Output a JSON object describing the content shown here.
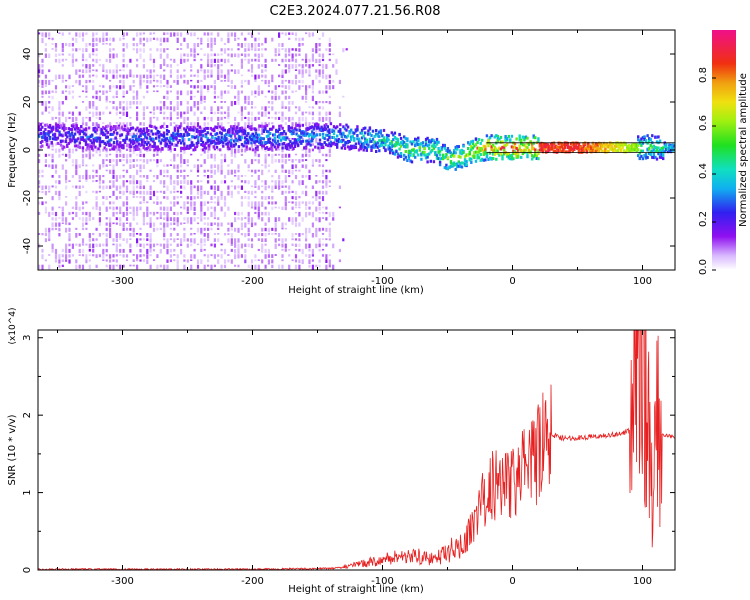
{
  "title": "C2E3.2024.077.21.56.R08",
  "colors": {
    "snr_line": "#e62020",
    "spectrogram_low": "#e6c8ff",
    "spectrogram_mid": "#8a10f0",
    "ridge_line": "#000000"
  },
  "chart_data": [
    {
      "type": "heatmap",
      "xlabel": "Height of straight line (km)",
      "ylabel": "Frequency (Hz)",
      "xlim": [
        -365,
        125
      ],
      "ylim": [
        -50,
        50
      ],
      "x_ticks": [
        -300,
        -200,
        -100,
        0,
        100
      ],
      "x_tick_labels": [
        "-300",
        "-200",
        "-100",
        "0",
        "100"
      ],
      "y_ticks": [
        -40,
        -20,
        0,
        20,
        40
      ],
      "y_tick_labels": [
        "-40",
        "-20",
        "0",
        "20",
        "40"
      ],
      "colorbar": {
        "label": "Normalized spectral amplitude",
        "range": [
          0,
          1
        ],
        "ticks": [
          0.0,
          0.2,
          0.4,
          0.6,
          0.8
        ],
        "tick_labels": [
          "0.0",
          "0.2",
          "0.4",
          "0.6",
          "0.8"
        ]
      },
      "noise_region_x": [
        -365,
        -140
      ],
      "ridge": {
        "x": [
          -365,
          -300,
          -200,
          -140,
          -100,
          -80,
          -60,
          -50,
          -40,
          -30,
          -20,
          0,
          50,
          100,
          125
        ],
        "freq": [
          6,
          5,
          5,
          6,
          4,
          0,
          0,
          -4,
          -3,
          0,
          1,
          1,
          1,
          1,
          1
        ],
        "peak_amplitude": [
          0.3,
          0.3,
          0.35,
          0.4,
          0.5,
          0.6,
          0.6,
          0.65,
          0.65,
          0.8,
          0.9,
          0.95,
          0.95,
          0.6,
          0.5
        ]
      }
    },
    {
      "type": "line",
      "xlabel": "Height of straight line (km)",
      "ylabel": "SNR (10 * v/v)",
      "y_multiplier": "(x10^4)",
      "xlim": [
        -365,
        125
      ],
      "ylim": [
        0,
        3.1
      ],
      "x_ticks": [
        -300,
        -200,
        -100,
        0,
        100
      ],
      "x_tick_labels": [
        "-300",
        "-200",
        "-100",
        "0",
        "100"
      ],
      "y_ticks": [
        0,
        1,
        2,
        3
      ],
      "y_tick_labels": [
        "0",
        "1",
        "2",
        "3"
      ],
      "series": [
        {
          "x": [
            -365,
            -300,
            -200,
            -140,
            -120,
            -100,
            -80,
            -60,
            -40,
            -30,
            -20,
            -10,
            0,
            20,
            30,
            40,
            60,
            80,
            90,
            95,
            100,
            105,
            108,
            110,
            115,
            125
          ],
          "y": [
            0.01,
            0.01,
            0.01,
            0.02,
            0.05,
            0.1,
            0.15,
            0.1,
            0.25,
            0.6,
            1.0,
            1.2,
            1.1,
            1.5,
            1.75,
            1.7,
            1.72,
            1.75,
            1.8,
            2.5,
            3.0,
            2.0,
            0.6,
            1.8,
            1.75,
            1.72
          ]
        }
      ]
    }
  ]
}
